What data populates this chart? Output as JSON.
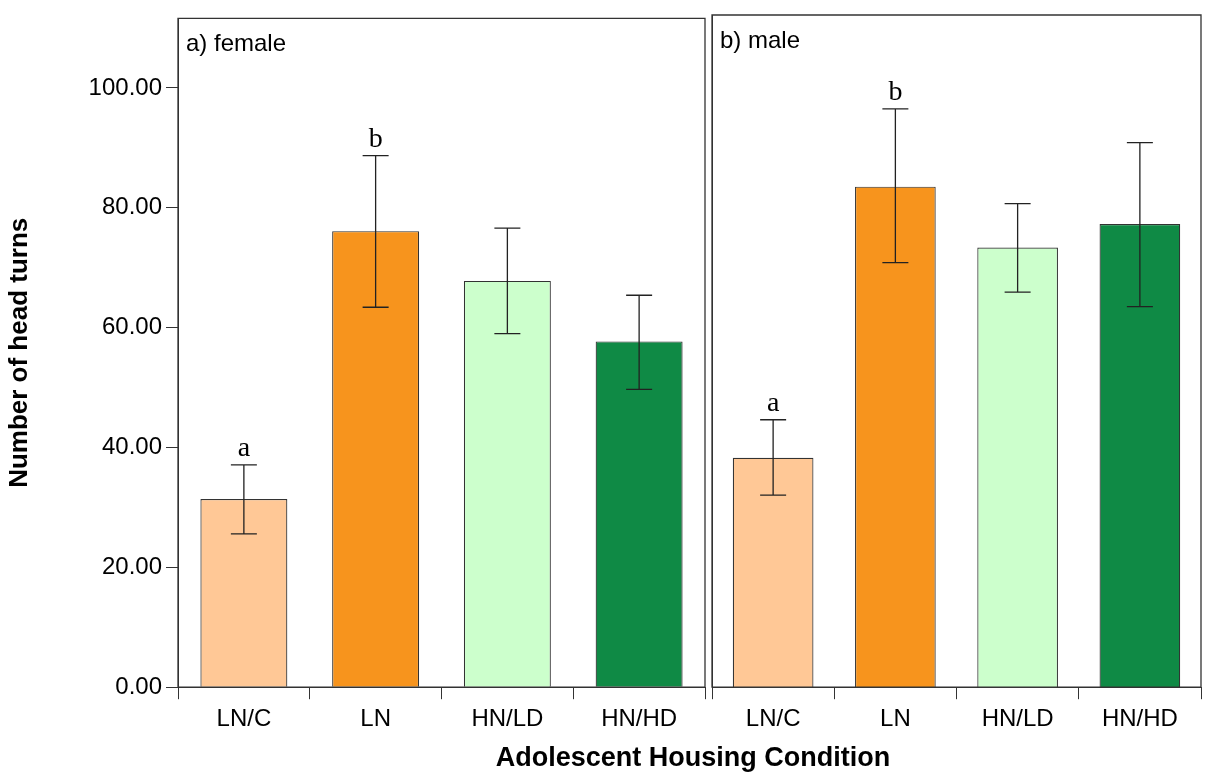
{
  "chart_data": [
    {
      "type": "bar",
      "title": "a) female",
      "xlabel": "Adolescent Housing Condition",
      "ylabel": "Number of head turns",
      "categories": [
        "LN/C",
        "LN",
        "HN/LD",
        "HN/HD"
      ],
      "values": [
        31.4,
        76.1,
        67.8,
        57.7
      ],
      "errors": [
        [
          25.6,
          37.1
        ],
        [
          63.4,
          88.7
        ],
        [
          59.0,
          76.6
        ],
        [
          49.7,
          65.4
        ]
      ],
      "colors": [
        "#ffc896",
        "#f7941d",
        "#ccffcc",
        "#0f8a45"
      ],
      "ylim": [
        0,
        111.6
      ],
      "yticks": [
        {
          "value": 0,
          "label": "0.00"
        },
        {
          "value": 20,
          "label": "20.00"
        },
        {
          "value": 40,
          "label": "40.00"
        },
        {
          "value": 60,
          "label": "60.00"
        },
        {
          "value": 80,
          "label": "80.00"
        },
        {
          "value": 100,
          "label": "100.00"
        }
      ],
      "annotations": [
        {
          "text": "a",
          "x": "LN/C",
          "y": 37.1
        },
        {
          "text": "b",
          "x": "LN",
          "y": 88.7
        }
      ],
      "grid": false,
      "legend": false
    },
    {
      "type": "bar",
      "title": "b) male",
      "categories": [
        "LN/C",
        "LN",
        "HN/LD",
        "HN/HD"
      ],
      "values": [
        38.1,
        83.1,
        73.0,
        76.9
      ],
      "errors": [
        [
          31.9,
          44.4
        ],
        [
          70.5,
          96.0
        ],
        [
          65.6,
          80.3
        ],
        [
          63.2,
          90.4
        ]
      ],
      "colors": [
        "#ffc896",
        "#f7941d",
        "#ccffcc",
        "#0f8a45"
      ],
      "ylim": [
        0,
        111.6
      ],
      "tick_labels": "x",
      "annotations": [
        {
          "text": "a",
          "x": "LN/C",
          "y": 44.4
        },
        {
          "text": "b",
          "x": "LN",
          "y": 96.0
        }
      ],
      "grid": false,
      "legend": false
    }
  ]
}
